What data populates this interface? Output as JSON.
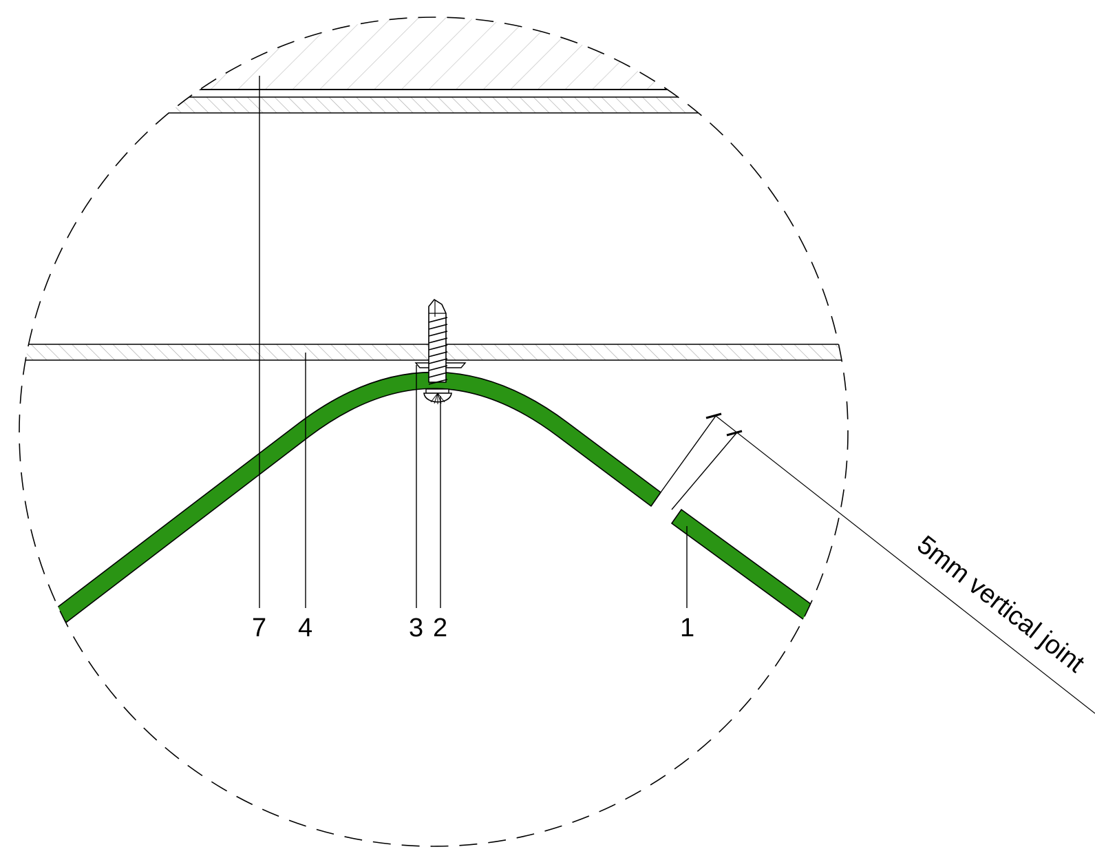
{
  "colors": {
    "panel_fill": "#2a9414",
    "outline": "#000000",
    "hatch": "#b8b8b8",
    "background": "#ffffff"
  },
  "callouts": {
    "c7": "7",
    "c4": "4",
    "c3": "3",
    "c2": "2",
    "c1": "1"
  },
  "dimension": {
    "label": "5mm vertical joint"
  },
  "icons": {
    "fastener": "screw-icon",
    "washer": "washer-icon"
  }
}
